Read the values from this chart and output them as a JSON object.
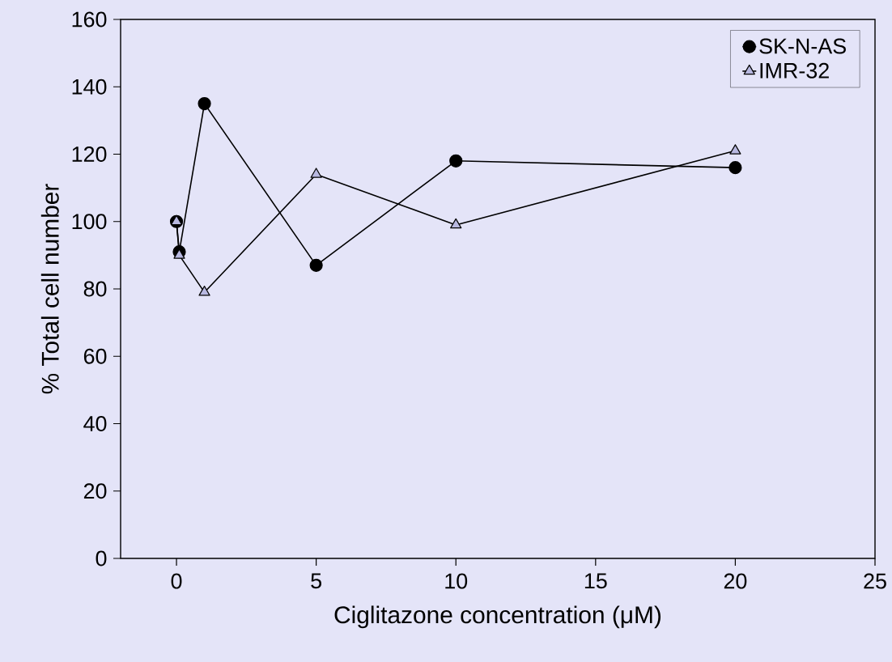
{
  "chart_data": {
    "type": "line",
    "xlabel": "Ciglitazone concentration (μM)",
    "ylabel": "% Total cell number",
    "x": [
      0,
      0.1,
      1,
      5,
      10,
      20
    ],
    "series": [
      {
        "name": "SK-N-AS",
        "color": "#000000",
        "marker": "circle",
        "values": [
          100,
          91,
          135,
          87,
          118,
          116
        ]
      },
      {
        "name": "IMR-32",
        "color": "#b8b8e0",
        "marker": "triangle",
        "values": [
          100,
          90,
          79,
          114,
          99,
          121
        ]
      }
    ],
    "xlim": [
      -2,
      25
    ],
    "xticks": [
      0,
      5,
      10,
      15,
      20,
      25
    ],
    "ylim": [
      0,
      160
    ],
    "yticks": [
      0,
      20,
      40,
      60,
      80,
      100,
      120,
      140,
      160
    ],
    "grid": false,
    "legend": "top right",
    "line_style": "solid"
  }
}
